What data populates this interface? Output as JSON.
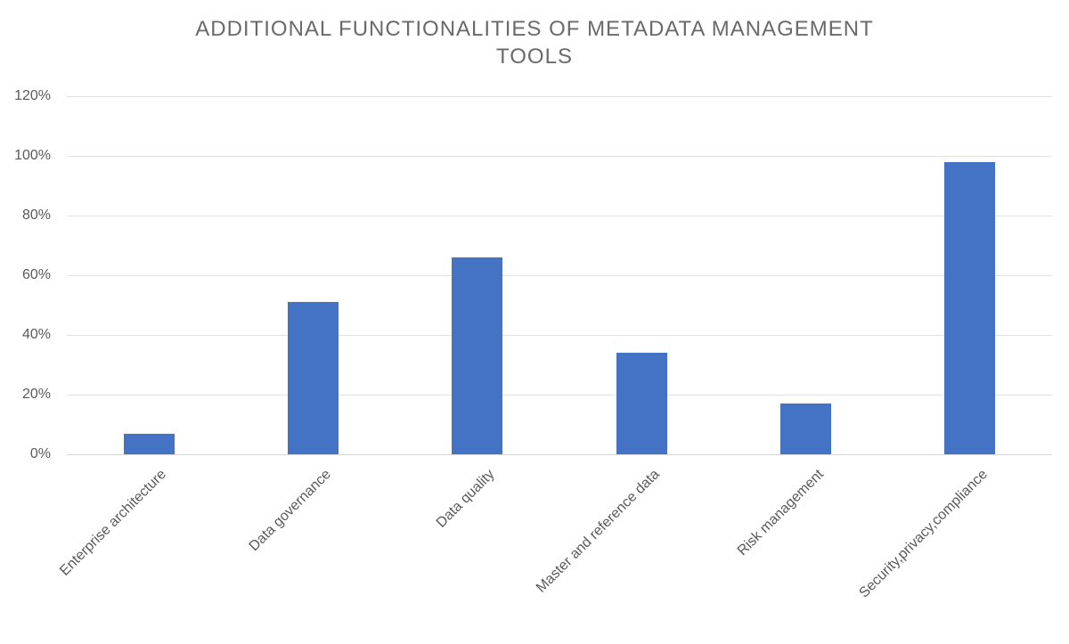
{
  "chart_data": {
    "type": "bar",
    "title": "ADDITIONAL FUNCTIONALITIES OF METADATA MANAGEMENT TOOLS",
    "title_lines": [
      "ADDITIONAL FUNCTIONALITIES OF METADATA MANAGEMENT",
      "TOOLS"
    ],
    "categories": [
      "Enterprise architecture",
      "Data governance",
      "Data quality",
      "Master and reference data",
      "Risk management",
      "Security,privacy,compliance"
    ],
    "values": [
      7,
      51,
      66,
      34,
      17,
      98
    ],
    "unit": "%",
    "xlabel": "",
    "ylabel": "",
    "ylim": [
      0,
      120
    ],
    "ytick_step": 20,
    "ytick_labels": [
      "0%",
      "20%",
      "40%",
      "60%",
      "80%",
      "100%",
      "120%"
    ],
    "grid": "horizontal",
    "legend": "none",
    "colors": {
      "bar": "#4472C4",
      "gridline": "#e2e2e2",
      "axis_line": "#d5d5d5",
      "axis_text": "#595959",
      "title_text": "#6a6a6a"
    }
  }
}
